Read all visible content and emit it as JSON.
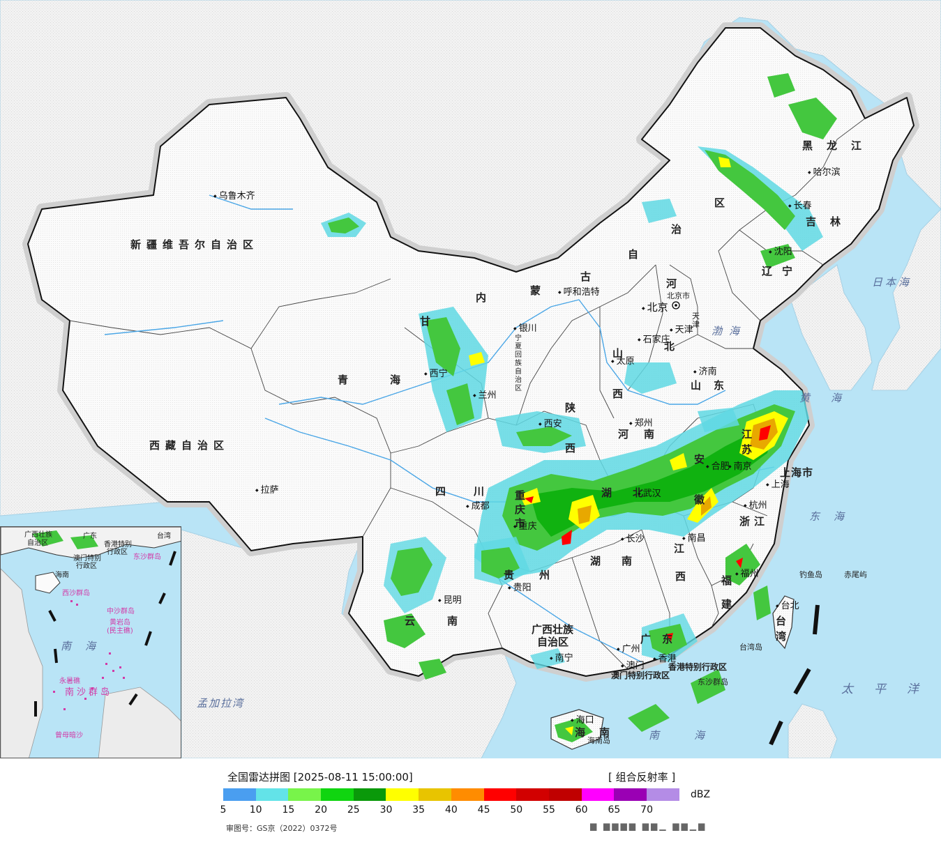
{
  "header": {
    "title": "全国雷达拼图 [2025-08-11 15:00:00]",
    "product": "[ 组合反射率 ]"
  },
  "legend": {
    "unit": "dBZ",
    "colors": [
      "#4a9ef0",
      "#63e3e8",
      "#78f44a",
      "#10d510",
      "#0a990a",
      "#ffff00",
      "#e8c400",
      "#ff8c00",
      "#ff0000",
      "#d20000",
      "#c00000",
      "#ff00ff",
      "#9a00b4",
      "#b48ce6"
    ],
    "ticks": [
      "5",
      "10",
      "15",
      "20",
      "25",
      "30",
      "35",
      "40",
      "45",
      "50",
      "55",
      "60",
      "65",
      "70"
    ],
    "approval": "审图号：GS京（2022）0372号",
    "source": "▆ ▆▆▆▆ ▆▆▁ ▆▆▁▆"
  },
  "map": {
    "provinces": {
      "xinjiang": "新疆维吾尔自治区",
      "xizang": "西藏自治区",
      "qinghai": "青海",
      "heilongjiang": "黑龙江",
      "jilin": "吉林",
      "liaoning": "辽宁",
      "neimenggu_1": "内",
      "neimenggu_2": "蒙",
      "neimenggu_3": "古",
      "neimenggu_4": "自",
      "neimenggu_5": "治",
      "neimenggu_6": "区",
      "gansu": "甘",
      "ningxia": "宁夏回族自治区",
      "hebei_1": "河",
      "hebei_2": "北",
      "shanxi": "山西",
      "shandong": "山东",
      "henan": "河南",
      "shaanxi": "陕西",
      "sichuan": "四川",
      "chongqing": "重庆市",
      "hubei": "湖北",
      "hunan": "湖南",
      "jiangxi_1": "江",
      "jiangxi_2": "西",
      "anhui": "安徽",
      "jiangsu": "江苏",
      "zhejiang": "浙江",
      "fujian": "福建",
      "guangdong": "广东",
      "guangxi_1": "广西壮族",
      "guangxi_2": "自治区",
      "guizhou": "贵州",
      "yunnan": "云南",
      "hainan": "海南",
      "taiwan": "台湾",
      "shanghai": "上海市",
      "tianjin": "天津",
      "beijing_city": "北京市",
      "hk": "香港特别行政区",
      "macau": "澳门特别行政区"
    },
    "cities": {
      "urumqi": "乌鲁木齐",
      "lhasa": "拉萨",
      "xining": "西宁",
      "lanzhou": "兰州",
      "yinchuan": "银川",
      "huhehaote": "呼和浩特",
      "beijing": "北京",
      "tianjin": "天津",
      "shijiazhuang": "石家庄",
      "taiyuan": "太原",
      "jinan": "济南",
      "zhengzhou": "郑州",
      "xian": "西安",
      "chengdu": "成都",
      "chongqing": "重庆",
      "wuhan": "武汉",
      "hefei": "合肥",
      "nanjing": "南京",
      "shanghai": "上海",
      "hangzhou": "杭州",
      "nanchang": "南昌",
      "changsha": "长沙",
      "guiyang": "贵阳",
      "kunming": "昆明",
      "nanning": "南宁",
      "guangzhou": "广州",
      "macao": "澳门",
      "hongkong": "香港",
      "fuzhou": "福州",
      "taibei": "台北",
      "haikou": "海口",
      "shenyang": "沈阳",
      "changchun": "长春",
      "haerbin": "哈尔滨"
    },
    "seas": {
      "japan_sea": "日本海",
      "bohai": "渤海",
      "yellow_sea": "黄海",
      "east_sea": "东海",
      "pacific": "太平洋",
      "south_sea": "南海",
      "bengal": "孟加拉湾"
    },
    "islands": {
      "diaoyu": "钓鱼岛",
      "chiwei": "赤尾屿",
      "taiwan_island": "台湾岛",
      "dongsha": "东沙群岛",
      "hainan_island": "海南岛"
    },
    "inset": {
      "guangxi": "广西壮族",
      "guangxi2": "自治区",
      "guangdong": "广东",
      "hk": "香港特别",
      "hk2": "行政区",
      "macau": "澳门特别",
      "macau2": "行政区",
      "taiwan": "台湾",
      "dongsha": "东沙群岛",
      "hainan": "海南",
      "xisha": "西沙群岛",
      "zhongsha": "中沙群岛",
      "huangyan": "黄岩岛",
      "huangyan2": "(民主礁)",
      "south_sea": "南海",
      "yongshu": "永暑礁",
      "nansha": "南沙群岛",
      "zengmu": "曾母暗沙"
    }
  }
}
